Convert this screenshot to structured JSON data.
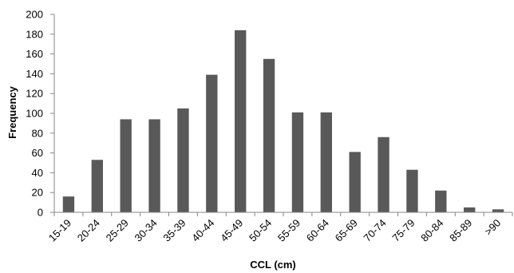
{
  "chart_data": {
    "type": "bar",
    "title": "",
    "xlabel": "CCL (cm)",
    "ylabel": "Frequency",
    "ylim": [
      0,
      200
    ],
    "yticks": [
      0,
      20,
      40,
      60,
      80,
      100,
      120,
      140,
      160,
      180,
      200
    ],
    "grid": false,
    "bar_color": "#595959",
    "axis_color": "#878787",
    "categories": [
      "15-19",
      "20-24",
      "25-29",
      "30-34",
      "35-39",
      "40-44",
      "45-49",
      "50-54",
      "55-59",
      "60-64",
      "65-69",
      "70-74",
      "75-79",
      "80-84",
      "85-89",
      ">90"
    ],
    "values": [
      16,
      53,
      94,
      94,
      105,
      139,
      184,
      155,
      101,
      101,
      61,
      76,
      43,
      22,
      5,
      3
    ]
  }
}
